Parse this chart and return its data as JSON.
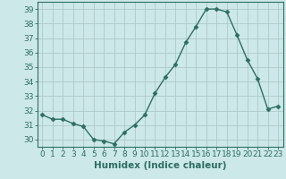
{
  "title": "",
  "xlabel": "Humidex (Indice chaleur)",
  "ylabel": "",
  "x": [
    0,
    1,
    2,
    3,
    4,
    5,
    6,
    7,
    8,
    9,
    10,
    11,
    12,
    13,
    14,
    15,
    16,
    17,
    18,
    19,
    20,
    21,
    22,
    23
  ],
  "y": [
    31.7,
    31.4,
    31.4,
    31.1,
    30.9,
    30.0,
    29.9,
    29.7,
    30.5,
    31.0,
    31.7,
    33.2,
    34.3,
    35.2,
    36.7,
    37.8,
    39.0,
    39.0,
    38.8,
    37.2,
    35.5,
    34.2,
    32.1,
    32.3
  ],
  "line_color": "#2d6e63",
  "marker": "D",
  "marker_size": 2.5,
  "bg_color": "#cce8e8",
  "grid_color": "#b0c8c8",
  "ylim": [
    29.5,
    39.5
  ],
  "yticks": [
    30,
    31,
    32,
    33,
    34,
    35,
    36,
    37,
    38,
    39
  ],
  "xlim": [
    -0.5,
    23.5
  ],
  "xticks": [
    0,
    1,
    2,
    3,
    4,
    5,
    6,
    7,
    8,
    9,
    10,
    11,
    12,
    13,
    14,
    15,
    16,
    17,
    18,
    19,
    20,
    21,
    22,
    23
  ],
  "tick_label_fontsize": 6.5,
  "xlabel_fontsize": 7.5,
  "line_width": 1.0
}
